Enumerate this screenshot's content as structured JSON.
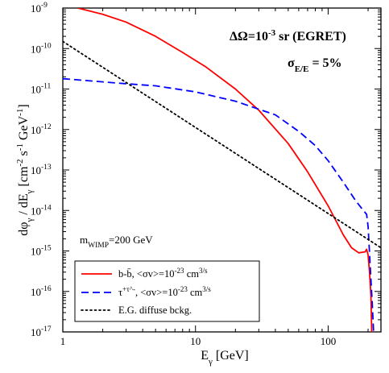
{
  "chart_data": {
    "type": "line",
    "xlabel": "E_γ [GeV]",
    "ylabel": "dφ_γ / dE_γ [cm^-2 s^-1 GeV^-1]",
    "xscale": "log",
    "yscale": "log",
    "xlim": [
      1,
      250
    ],
    "ylim": [
      1e-17,
      1e-09
    ],
    "x_ticks": [
      {
        "value": 1,
        "label": "1"
      },
      {
        "value": 10,
        "label": "10"
      },
      {
        "value": 100,
        "label": "100"
      }
    ],
    "y_ticks": [
      {
        "value": 1e-09,
        "base": "10",
        "exp": "-9"
      },
      {
        "value": 1e-10,
        "base": "10",
        "exp": "-10"
      },
      {
        "value": 1e-11,
        "base": "10",
        "exp": "-11"
      },
      {
        "value": 1e-12,
        "base": "10",
        "exp": "-12"
      },
      {
        "value": 1e-13,
        "base": "10",
        "exp": "-13"
      },
      {
        "value": 1e-14,
        "base": "10",
        "exp": "-14"
      },
      {
        "value": 1e-15,
        "base": "10",
        "exp": "-15"
      },
      {
        "value": 1e-16,
        "base": "10",
        "exp": "-16"
      },
      {
        "value": 1e-17,
        "base": "10",
        "exp": "-17"
      }
    ],
    "annotations": {
      "solid_angle": "ΔΩ=10^-3 sr (EGRET)",
      "resolution": "σ_E/E = 5%",
      "mass": "m_WIMP=200 GeV"
    },
    "legend_position": "bottom-left",
    "series": [
      {
        "name": "b-b̄, <σv>=10^-23 cm^3/s",
        "color": "#ff0000",
        "style": "solid",
        "points": [
          [
            1.3,
            1e-09
          ],
          [
            2,
            7e-10
          ],
          [
            3,
            4.5e-10
          ],
          [
            5,
            2e-10
          ],
          [
            8,
            8e-11
          ],
          [
            12,
            3.5e-11
          ],
          [
            20,
            1e-11
          ],
          [
            30,
            3e-12
          ],
          [
            50,
            4.5e-13
          ],
          [
            70,
            9e-14
          ],
          [
            100,
            1.3e-14
          ],
          [
            130,
            2.5e-15
          ],
          [
            150,
            1.2e-15
          ],
          [
            170,
            9e-16
          ],
          [
            190,
            9.5e-16
          ],
          [
            195,
            1.1e-15
          ],
          [
            200,
            8e-16
          ],
          [
            205,
            3e-16
          ],
          [
            210,
            8e-17
          ],
          [
            213,
            1e-17
          ]
        ]
      },
      {
        "name": "τ^+τ^-, <σv>=10^-23 cm^3/s",
        "color": "#0000ff",
        "style": "dashed",
        "points": [
          [
            1,
            1.8e-11
          ],
          [
            2,
            1.5e-11
          ],
          [
            3,
            1.35e-11
          ],
          [
            5,
            1.2e-11
          ],
          [
            10,
            8.5e-12
          ],
          [
            20,
            5e-12
          ],
          [
            40,
            2.3e-12
          ],
          [
            60,
            9e-13
          ],
          [
            80,
            4e-13
          ],
          [
            100,
            1.7e-13
          ],
          [
            130,
            5e-14
          ],
          [
            160,
            1.8e-14
          ],
          [
            180,
            1.1e-14
          ],
          [
            195,
            8e-15
          ],
          [
            200,
            4e-15
          ],
          [
            205,
            9e-16
          ],
          [
            210,
            2e-16
          ],
          [
            215,
            5e-17
          ],
          [
            220,
            1e-17
          ]
        ]
      },
      {
        "name": "E.G. diffuse bckg.",
        "color": "#000000",
        "style": "dotted",
        "points": [
          [
            1,
            1.5e-10
          ],
          [
            250,
            1.2e-15
          ]
        ]
      }
    ]
  }
}
